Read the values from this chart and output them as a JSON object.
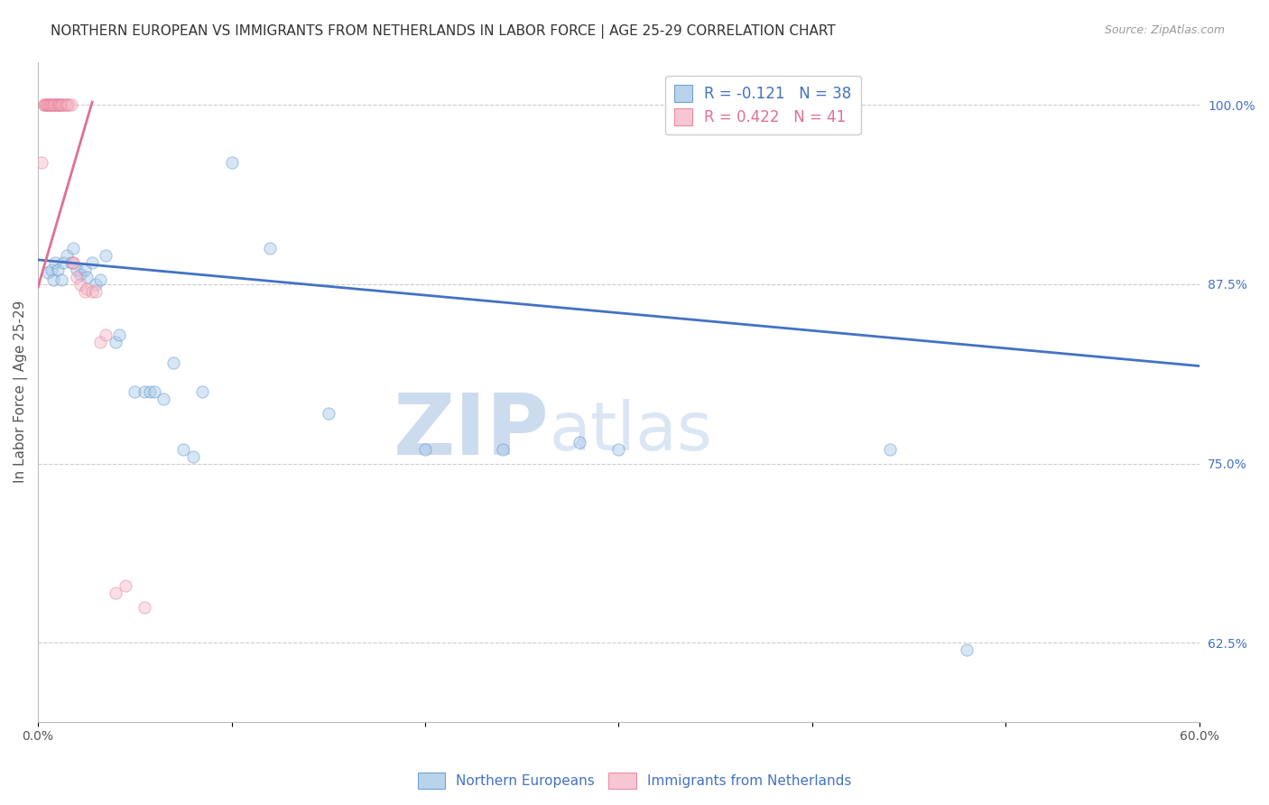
{
  "title": "NORTHERN EUROPEAN VS IMMIGRANTS FROM NETHERLANDS IN LABOR FORCE | AGE 25-29 CORRELATION CHART",
  "source": "Source: ZipAtlas.com",
  "ylabel": "In Labor Force | Age 25-29",
  "xlim": [
    0.0,
    0.6
  ],
  "ylim": [
    0.57,
    1.03
  ],
  "yticks_right": [
    1.0,
    0.875,
    0.75,
    0.625
  ],
  "ytick_right_labels": [
    "100.0%",
    "87.5%",
    "75.0%",
    "62.5%"
  ],
  "legend_blue_r": "R = -0.121",
  "legend_blue_n": "N = 38",
  "legend_pink_r": "R = 0.422",
  "legend_pink_n": "N = 41",
  "blue_color": "#a8c8e8",
  "pink_color": "#f4b8c8",
  "blue_edge_color": "#5590c8",
  "pink_edge_color": "#e87890",
  "blue_line_color": "#4472c4",
  "pink_line_color": "#e07090",
  "right_tick_color": "#4472c4",
  "watermark_zip_color": "#c8d8ee",
  "watermark_atlas_color": "#d8e4f4",
  "blue_scatter_x": [
    0.005,
    0.007,
    0.008,
    0.009,
    0.01,
    0.012,
    0.013,
    0.015,
    0.017,
    0.018,
    0.02,
    0.022,
    0.024,
    0.025,
    0.028,
    0.03,
    0.032,
    0.035,
    0.04,
    0.042,
    0.05,
    0.055,
    0.058,
    0.06,
    0.065,
    0.07,
    0.075,
    0.08,
    0.085,
    0.1,
    0.12,
    0.15,
    0.2,
    0.24,
    0.28,
    0.3,
    0.44,
    0.48
  ],
  "blue_scatter_y": [
    0.883,
    0.885,
    0.878,
    0.89,
    0.885,
    0.878,
    0.89,
    0.895,
    0.89,
    0.9,
    0.885,
    0.882,
    0.885,
    0.88,
    0.89,
    0.875,
    0.878,
    0.895,
    0.835,
    0.84,
    0.8,
    0.8,
    0.8,
    0.8,
    0.795,
    0.82,
    0.76,
    0.755,
    0.8,
    0.96,
    0.9,
    0.785,
    0.76,
    0.76,
    0.765,
    0.76,
    0.76,
    0.62
  ],
  "pink_scatter_x": [
    0.002,
    0.003,
    0.003,
    0.004,
    0.004,
    0.005,
    0.005,
    0.006,
    0.006,
    0.007,
    0.007,
    0.008,
    0.008,
    0.009,
    0.009,
    0.01,
    0.01,
    0.01,
    0.011,
    0.011,
    0.012,
    0.012,
    0.013,
    0.014,
    0.015,
    0.015,
    0.016,
    0.017,
    0.018,
    0.018,
    0.02,
    0.022,
    0.024,
    0.025,
    0.028,
    0.03,
    0.032,
    0.035,
    0.04,
    0.045,
    0.055
  ],
  "pink_scatter_y": [
    0.96,
    1.0,
    1.0,
    1.0,
    1.0,
    1.0,
    1.0,
    1.0,
    1.0,
    1.0,
    1.0,
    1.0,
    1.0,
    1.0,
    1.0,
    1.0,
    1.0,
    1.0,
    1.0,
    1.0,
    1.0,
    1.0,
    1.0,
    1.0,
    1.0,
    1.0,
    1.0,
    1.0,
    0.89,
    0.89,
    0.88,
    0.875,
    0.87,
    0.872,
    0.87,
    0.87,
    0.835,
    0.84,
    0.66,
    0.665,
    0.65
  ],
  "blue_line_x": [
    0.0,
    0.6
  ],
  "blue_line_y": [
    0.892,
    0.818
  ],
  "pink_line_x": [
    0.0,
    0.028
  ],
  "pink_line_y": [
    0.873,
    1.002
  ],
  "background_color": "#ffffff",
  "title_fontsize": 11,
  "axis_label_fontsize": 11,
  "tick_fontsize": 10,
  "legend_fontsize": 12,
  "marker_size": 90,
  "marker_alpha": 0.45,
  "grid_color": "#cccccc",
  "grid_style": "--"
}
